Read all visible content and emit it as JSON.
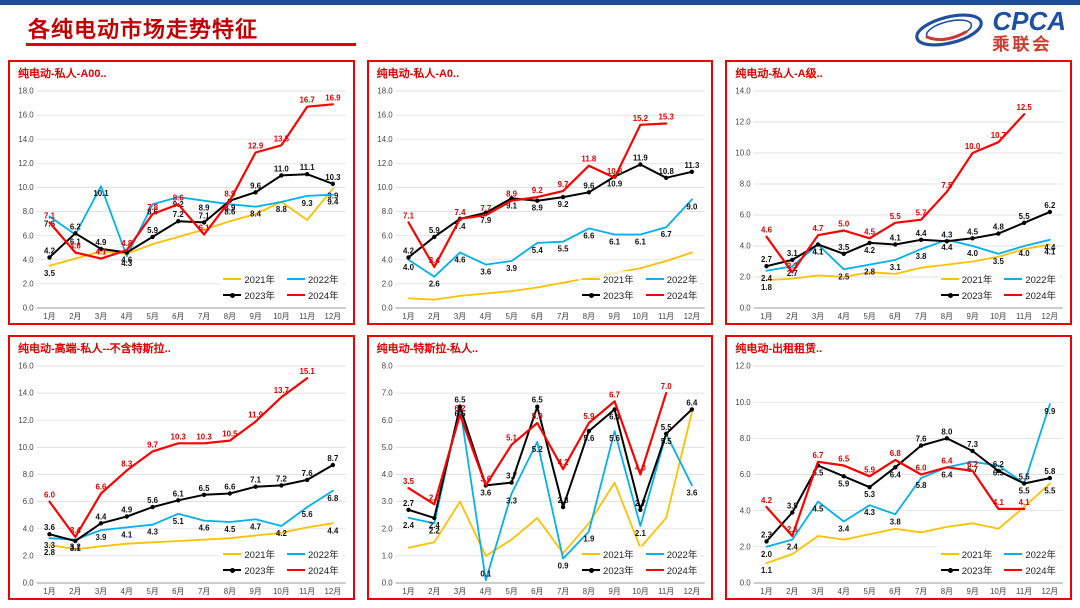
{
  "page": {
    "title": "各纯电动市场走势特征",
    "logo": {
      "cpca": "CPCA",
      "cn": "乘联会"
    },
    "accent_colors": {
      "title_red": "#C00000",
      "panel_border_red": "#F20000",
      "top_bar_blue": "#1F4E96",
      "logo_blue": "#1E4FA0"
    }
  },
  "legend": {
    "position": "bottom-right-inside",
    "items": [
      {
        "label": "2021年",
        "color": "#FFC000"
      },
      {
        "label": "2022年",
        "color": "#00B0F0"
      },
      {
        "label": "2023年",
        "color": "#000000",
        "marker": true
      },
      {
        "label": "2024年",
        "color": "#FF0000"
      }
    ]
  },
  "chart_data": [
    {
      "type": "line",
      "title": "纯电动-私人-A00..",
      "x": [
        "1月",
        "2月",
        "3月",
        "4月",
        "5月",
        "6月",
        "7月",
        "8月",
        "9月",
        "10月",
        "11月",
        "12月"
      ],
      "ylim": [
        0,
        18
      ],
      "ystep": 2,
      "grid": true,
      "series": [
        {
          "name": "2021年",
          "color": "#FFC000",
          "labels": "ends",
          "values": [
            3.5,
            4.1,
            4.7,
            4.5,
            5.3,
            5.9,
            6.5,
            7.2,
            7.8,
            8.8,
            7.3,
            9.9
          ]
        },
        {
          "name": "2022年",
          "color": "#00B0F0",
          "labels": "all",
          "values": [
            7.6,
            6.1,
            10.1,
            4.3,
            8.6,
            9.2,
            8.9,
            8.6,
            8.4,
            8.8,
            9.3,
            9.4
          ]
        },
        {
          "name": "2023年",
          "color": "#000000",
          "marker": true,
          "labels": "all",
          "values": [
            4.2,
            6.2,
            4.9,
            4.6,
            5.9,
            7.2,
            7.1,
            8.9,
            9.6,
            11.0,
            11.1,
            10.3
          ]
        },
        {
          "name": "2024年",
          "color": "#FF0000",
          "labels": "all",
          "values": [
            7.1,
            4.6,
            4.1,
            4.8,
            7.8,
            8.6,
            6.1,
            8.9,
            12.9,
            13.5,
            16.7,
            16.9
          ]
        }
      ]
    },
    {
      "type": "line",
      "title": "纯电动-私人-A0..",
      "x": [
        "1月",
        "2月",
        "3月",
        "4月",
        "5月",
        "6月",
        "7月",
        "8月",
        "9月",
        "10月",
        "11月",
        "12月"
      ],
      "ylim": [
        0,
        18
      ],
      "ystep": 2,
      "grid": true,
      "series": [
        {
          "name": "2021年",
          "color": "#FFC000",
          "labels": "none",
          "values": [
            0.8,
            0.7,
            1.0,
            1.2,
            1.4,
            1.7,
            2.1,
            2.5,
            2.9,
            3.3,
            3.9,
            4.6
          ]
        },
        {
          "name": "2022年",
          "color": "#00B0F0",
          "labels": "all",
          "values": [
            4.0,
            2.6,
            4.6,
            3.6,
            3.9,
            5.4,
            5.5,
            6.6,
            6.1,
            6.1,
            6.7,
            9.0
          ]
        },
        {
          "name": "2023年",
          "color": "#000000",
          "marker": true,
          "labels": "all",
          "values": [
            4.2,
            5.9,
            7.4,
            7.9,
            9.1,
            8.9,
            9.2,
            9.6,
            10.9,
            11.9,
            10.8,
            11.3
          ]
        },
        {
          "name": "2024年",
          "color": "#FF0000",
          "labels": "all",
          "values": [
            7.1,
            3.4,
            7.4,
            7.7,
            8.9,
            9.2,
            9.7,
            11.8,
            10.8,
            15.2,
            15.3,
            null
          ]
        }
      ]
    },
    {
      "type": "line",
      "title": "纯电动-私人-A级..",
      "x": [
        "1月",
        "2月",
        "3月",
        "4月",
        "5月",
        "6月",
        "7月",
        "8月",
        "9月",
        "10月",
        "11月",
        "12月"
      ],
      "ylim": [
        0,
        14
      ],
      "ystep": 2,
      "grid": true,
      "series": [
        {
          "name": "2021年",
          "color": "#FFC000",
          "labels": "ends",
          "values": [
            1.8,
            1.9,
            2.1,
            2.0,
            2.3,
            2.2,
            2.6,
            2.8,
            3.0,
            3.3,
            3.8,
            4.1
          ]
        },
        {
          "name": "2022年",
          "color": "#00B0F0",
          "labels": "all",
          "values": [
            2.4,
            2.7,
            4.1,
            2.5,
            2.8,
            3.1,
            3.8,
            4.4,
            4.0,
            3.5,
            4.0,
            4.4
          ]
        },
        {
          "name": "2023年",
          "color": "#000000",
          "marker": true,
          "labels": "all",
          "values": [
            2.7,
            3.1,
            4.1,
            3.5,
            4.2,
            4.1,
            4.4,
            4.3,
            4.5,
            4.8,
            5.5,
            6.2
          ]
        },
        {
          "name": "2024年",
          "color": "#FF0000",
          "labels": "all",
          "values": [
            4.6,
            2.3,
            4.7,
            5.0,
            4.5,
            5.5,
            5.7,
            7.5,
            10.0,
            10.7,
            12.5,
            null
          ]
        }
      ]
    },
    {
      "type": "line",
      "title": "纯电动-高端-私人--不含特斯拉..",
      "x": [
        "1月",
        "2月",
        "3月",
        "4月",
        "5月",
        "6月",
        "7月",
        "8月",
        "9月",
        "10月",
        "11月",
        "12月"
      ],
      "ylim": [
        0,
        16
      ],
      "ystep": 2,
      "grid": true,
      "series": [
        {
          "name": "2021年",
          "color": "#FFC000",
          "labels": "ends",
          "values": [
            2.8,
            2.5,
            2.7,
            2.9,
            3.0,
            3.1,
            3.2,
            3.3,
            3.5,
            3.7,
            4.1,
            4.4
          ]
        },
        {
          "name": "2022年",
          "color": "#00B0F0",
          "labels": "all",
          "values": [
            3.3,
            3.2,
            3.9,
            4.1,
            4.3,
            5.1,
            4.6,
            4.5,
            4.7,
            4.2,
            5.6,
            6.8
          ]
        },
        {
          "name": "2023年",
          "color": "#000000",
          "marker": true,
          "labels": "all",
          "values": [
            3.6,
            3.1,
            4.4,
            4.9,
            5.6,
            6.1,
            6.5,
            6.6,
            7.1,
            7.2,
            7.6,
            8.7
          ]
        },
        {
          "name": "2024年",
          "color": "#FF0000",
          "labels": "all",
          "values": [
            6.0,
            3.4,
            6.6,
            8.3,
            9.7,
            10.3,
            10.3,
            10.5,
            11.9,
            13.7,
            15.1,
            null
          ]
        }
      ]
    },
    {
      "type": "line",
      "title": "纯电动-特斯拉-私人..",
      "x": [
        "1月",
        "2月",
        "3月",
        "4月",
        "5月",
        "6月",
        "7月",
        "8月",
        "9月",
        "10月",
        "11月",
        "12月"
      ],
      "ylim": [
        0,
        8
      ],
      "ystep": 1,
      "grid": true,
      "series": [
        {
          "name": "2021年",
          "color": "#FFC000",
          "labels": "none",
          "values": [
            1.3,
            1.5,
            3.0,
            1.0,
            1.6,
            2.4,
            1.1,
            2.2,
            3.7,
            1.3,
            2.4,
            6.3
          ]
        },
        {
          "name": "2022年",
          "color": "#00B0F0",
          "labels": "all",
          "values": [
            2.4,
            2.2,
            6.5,
            0.1,
            3.3,
            5.2,
            0.9,
            1.9,
            5.6,
            2.1,
            5.5,
            3.6
          ]
        },
        {
          "name": "2023年",
          "color": "#000000",
          "marker": true,
          "labels": "all",
          "values": [
            2.7,
            2.4,
            6.5,
            3.6,
            3.7,
            6.5,
            2.8,
            5.6,
            6.4,
            2.7,
            5.5,
            6.4
          ]
        },
        {
          "name": "2024年",
          "color": "#FF0000",
          "labels": "all",
          "values": [
            3.5,
            2.9,
            6.2,
            3.6,
            5.1,
            5.9,
            4.2,
            5.9,
            6.7,
            4.0,
            7.0,
            null
          ]
        }
      ]
    },
    {
      "type": "line",
      "title": "纯电动-出租租赁..",
      "x": [
        "1月",
        "2月",
        "3月",
        "4月",
        "5月",
        "6月",
        "7月",
        "8月",
        "9月",
        "10月",
        "11月",
        "12月"
      ],
      "ylim": [
        0,
        12
      ],
      "ystep": 2,
      "grid": true,
      "series": [
        {
          "name": "2021年",
          "color": "#FFC000",
          "labels": "ends",
          "values": [
            1.1,
            1.6,
            2.6,
            2.4,
            2.7,
            3.0,
            2.8,
            3.1,
            3.3,
            3.0,
            4.2,
            5.5
          ]
        },
        {
          "name": "2022年",
          "color": "#00B0F0",
          "labels": "all",
          "values": [
            2.0,
            2.4,
            4.5,
            3.4,
            4.3,
            3.8,
            5.8,
            6.4,
            6.7,
            6.5,
            5.5,
            9.9
          ]
        },
        {
          "name": "2023年",
          "color": "#000000",
          "marker": true,
          "labels": "all",
          "values": [
            2.3,
            3.9,
            6.5,
            5.9,
            5.3,
            6.4,
            7.6,
            8.0,
            7.3,
            6.2,
            5.5,
            5.8
          ]
        },
        {
          "name": "2024年",
          "color": "#FF0000",
          "labels": "all",
          "values": [
            4.2,
            2.6,
            6.7,
            6.5,
            5.9,
            6.8,
            6.0,
            6.4,
            6.2,
            4.1,
            4.1,
            null
          ]
        }
      ]
    }
  ]
}
